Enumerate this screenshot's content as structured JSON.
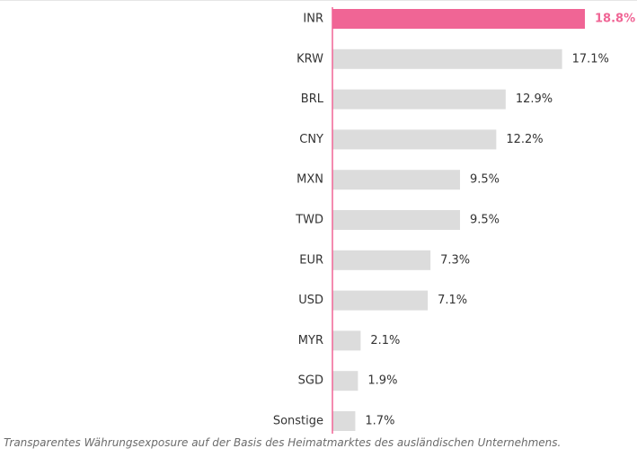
{
  "chart_data": {
    "type": "bar",
    "orientation": "horizontal",
    "categories": [
      "INR",
      "KRW",
      "BRL",
      "CNY",
      "MXN",
      "TWD",
      "EUR",
      "USD",
      "MYR",
      "SGD",
      "Sonstige"
    ],
    "values": [
      18.8,
      17.1,
      12.9,
      12.2,
      9.5,
      9.5,
      7.3,
      7.1,
      2.1,
      1.9,
      1.7
    ],
    "value_labels": [
      "18.8%",
      "17.1%",
      "12.9%",
      "12.2%",
      "9.5%",
      "9.5%",
      "7.3%",
      "7.1%",
      "2.1%",
      "1.9%",
      "1.7%"
    ],
    "colors": [
      "#f06595",
      "#dcdcdc",
      "#dcdcdc",
      "#dcdcdc",
      "#dcdcdc",
      "#dcdcdc",
      "#dcdcdc",
      "#dcdcdc",
      "#dcdcdc",
      "#dcdcdc",
      "#dcdcdc"
    ],
    "label_colors": [
      "#f06595",
      "#333333",
      "#333333",
      "#333333",
      "#333333",
      "#333333",
      "#333333",
      "#333333",
      "#333333",
      "#333333",
      "#333333"
    ],
    "axis_color": "#f06595",
    "note": "Transparentes Währungsexposure auf der Basis des Heimatmarktes des ausländischen Unternehmens."
  }
}
